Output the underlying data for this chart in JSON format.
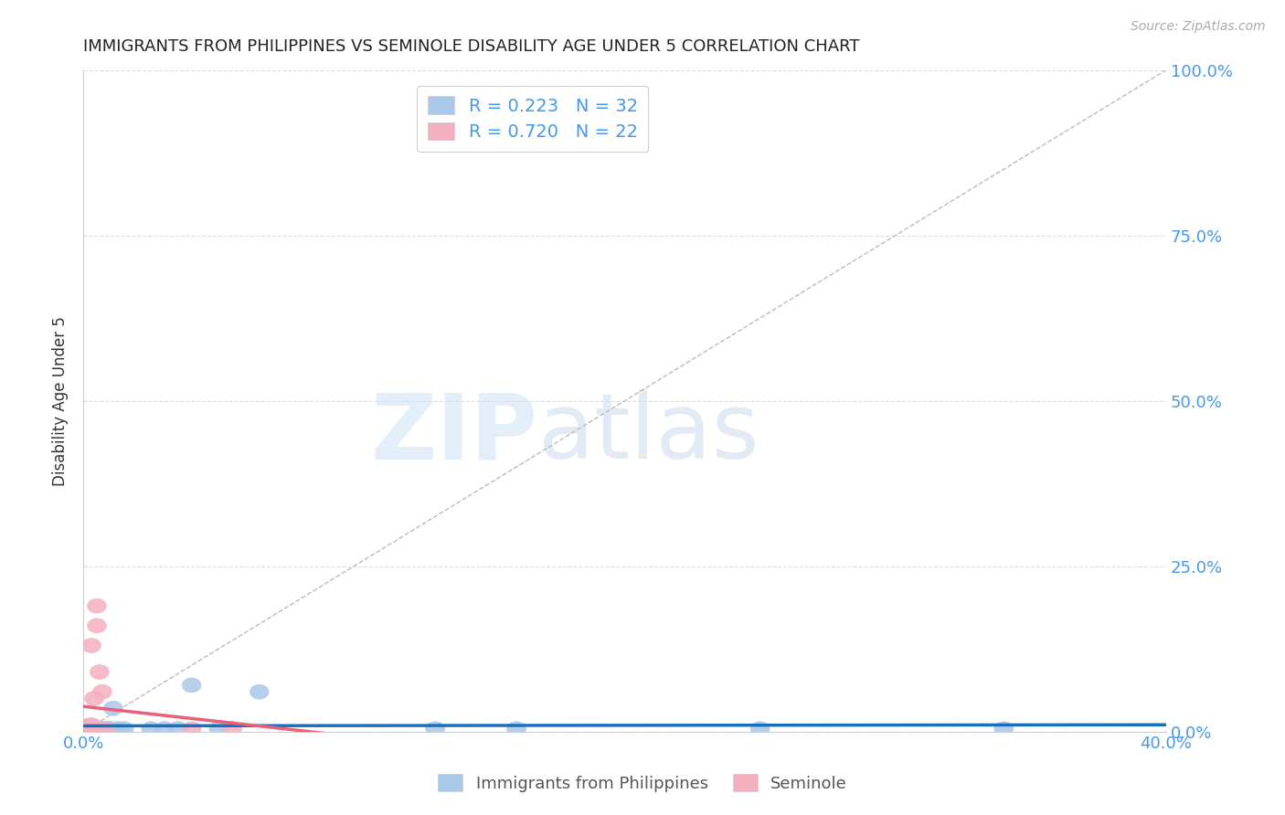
{
  "title": "IMMIGRANTS FROM PHILIPPINES VS SEMINOLE DISABILITY AGE UNDER 5 CORRELATION CHART",
  "source": "Source: ZipAtlas.com",
  "ylabel": "Disability Age Under 5",
  "xlim": [
    0.0,
    0.4
  ],
  "ylim": [
    0.0,
    1.0
  ],
  "xticks": [
    0.0,
    0.1,
    0.2,
    0.3,
    0.4
  ],
  "xtick_labels": [
    "0.0%",
    "",
    "",
    "",
    "40.0%"
  ],
  "yticks": [
    0.0,
    0.25,
    0.5,
    0.75,
    1.0
  ],
  "ytick_labels": [
    "0.0%",
    "25.0%",
    "50.0%",
    "75.0%",
    "100.0%"
  ],
  "blue_color": "#aac8e8",
  "pink_color": "#f5b0c0",
  "blue_line_color": "#1a6fbd",
  "pink_line_color": "#e8607a",
  "axis_color": "#4499ee",
  "R_blue": 0.223,
  "N_blue": 32,
  "R_pink": 0.72,
  "N_pink": 22,
  "blue_x": [
    0.001,
    0.001,
    0.002,
    0.002,
    0.002,
    0.003,
    0.003,
    0.003,
    0.004,
    0.004,
    0.004,
    0.005,
    0.005,
    0.006,
    0.006,
    0.007,
    0.008,
    0.009,
    0.01,
    0.011,
    0.013,
    0.015,
    0.025,
    0.03,
    0.035,
    0.04,
    0.05,
    0.065,
    0.13,
    0.16,
    0.25,
    0.34
  ],
  "blue_y": [
    0.003,
    0.004,
    0.003,
    0.004,
    0.005,
    0.003,
    0.004,
    0.005,
    0.003,
    0.004,
    0.005,
    0.003,
    0.004,
    0.003,
    0.004,
    0.004,
    0.004,
    0.004,
    0.004,
    0.035,
    0.004,
    0.004,
    0.004,
    0.004,
    0.004,
    0.07,
    0.004,
    0.06,
    0.004,
    0.004,
    0.004,
    0.004
  ],
  "pink_x": [
    0.001,
    0.001,
    0.001,
    0.001,
    0.002,
    0.002,
    0.002,
    0.002,
    0.003,
    0.003,
    0.003,
    0.003,
    0.003,
    0.004,
    0.004,
    0.005,
    0.005,
    0.006,
    0.007,
    0.008,
    0.04,
    0.055
  ],
  "pink_y": [
    0.003,
    0.004,
    0.005,
    0.007,
    0.003,
    0.004,
    0.005,
    0.009,
    0.003,
    0.005,
    0.008,
    0.01,
    0.13,
    0.05,
    0.003,
    0.16,
    0.19,
    0.09,
    0.06,
    0.004,
    0.004,
    0.004
  ],
  "watermark_zip": "ZIP",
  "watermark_atlas": "atlas",
  "background_color": "#ffffff",
  "grid_color": "#dddddd",
  "legend_R_color": "#333333",
  "legend_N_color": "#3388ee"
}
